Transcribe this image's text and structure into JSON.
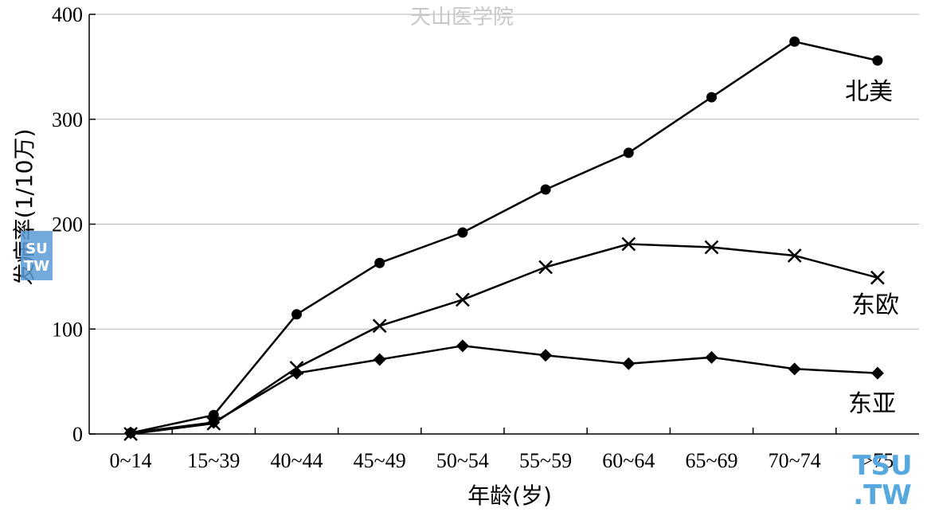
{
  "watermark_top": "天山医学院",
  "watermark_left": [
    "SU",
    "TW"
  ],
  "watermark_right": [
    "TSU",
    ".TW"
  ],
  "chart_data": {
    "type": "line",
    "xlabel": "年龄(岁)",
    "ylabel": "发病率(1/10万)",
    "categories": [
      "0~14",
      "15~39",
      "40~44",
      "45~49",
      "50~54",
      "55~59",
      "60~64",
      "65~69",
      "70~74",
      ">75"
    ],
    "ylim": [
      0,
      400
    ],
    "yticks": [
      0,
      100,
      200,
      300,
      400
    ],
    "grid": true,
    "series": [
      {
        "name": "北美",
        "marker": "circle",
        "values": [
          1,
          18,
          114,
          163,
          192,
          233,
          268,
          321,
          374,
          356
        ]
      },
      {
        "name": "东欧",
        "marker": "x",
        "values": [
          0,
          10,
          63,
          103,
          128,
          159,
          181,
          178,
          170,
          149
        ]
      },
      {
        "name": "东亚",
        "marker": "diamond",
        "values": [
          1,
          11,
          58,
          71,
          84,
          75,
          67,
          73,
          62,
          58
        ]
      }
    ]
  }
}
